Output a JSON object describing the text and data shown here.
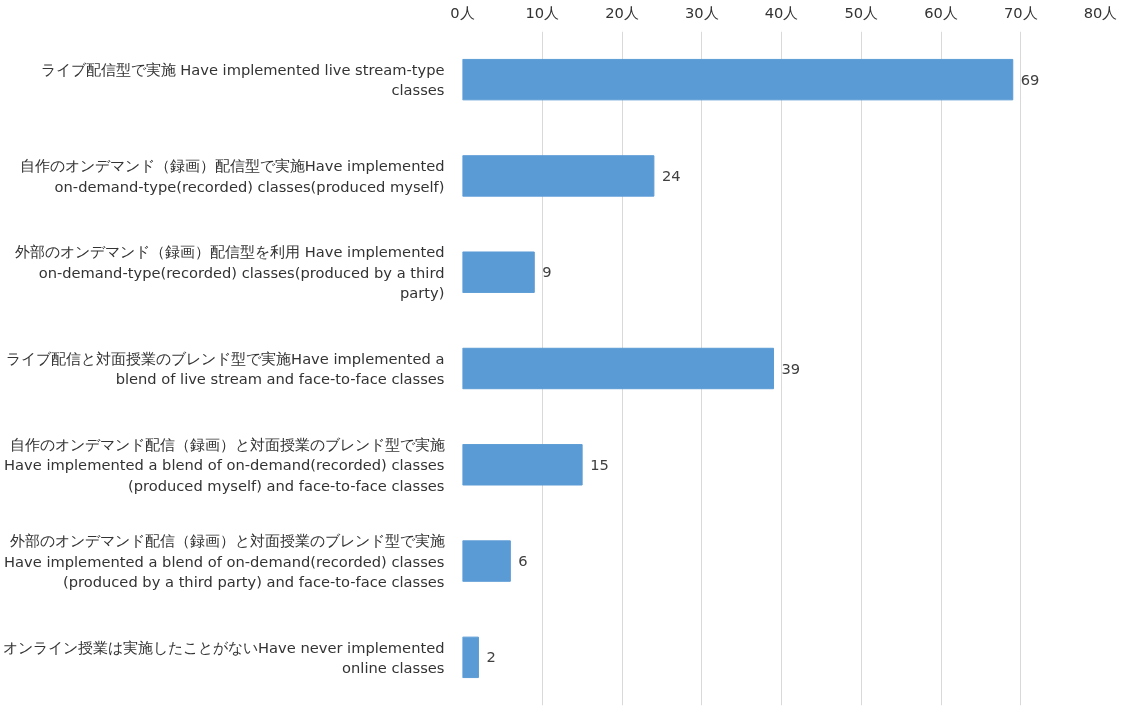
{
  "chart_data": {
    "type": "bar",
    "orientation": "horizontal",
    "categories": [
      "ライブ配信型で実施 Have implemented live stream-type\nclasses",
      "自作のオンデマンド（録画）配信型で実施Have implemented\non-demand-type(recorded) classes(produced myself)",
      "外部のオンデマンド（録画）配信型を利用 Have implemented\non-demand-type(recorded) classes(produced by a third\nparty)",
      "ライブ配信と対面授業のブレンド型で実施Have implemented a\nblend of live stream and face-to-face classes",
      "自作のオンデマンド配信（録画）と対面授業のブレンド型で実施\nHave implemented a blend of on-demand(recorded) classes\n(produced myself) and face-to-face classes",
      "外部のオンデマンド配信（録画）と対面授業のブレンド型で実施\nHave implemented a blend of on-demand(recorded) classes\n(produced by a third party) and face-to-face classes",
      "オンライン授業は実施したことがないHave never implemented\nonline classes"
    ],
    "values": [
      69,
      24,
      9,
      39,
      15,
      6,
      2
    ],
    "color": "#5b9bd5",
    "data_labels": true,
    "xlim": [
      0,
      80
    ],
    "xticks": [
      {
        "value": 0,
        "label": "0人"
      },
      {
        "value": 10,
        "label": "10人"
      },
      {
        "value": 20,
        "label": "20人"
      },
      {
        "value": 30,
        "label": "30人"
      },
      {
        "value": 40,
        "label": "40人"
      },
      {
        "value": 50,
        "label": "50人"
      },
      {
        "value": 60,
        "label": "60人"
      },
      {
        "value": 70,
        "label": "70人"
      },
      {
        "value": 80,
        "label": "80人"
      }
    ],
    "grid": "x"
  }
}
